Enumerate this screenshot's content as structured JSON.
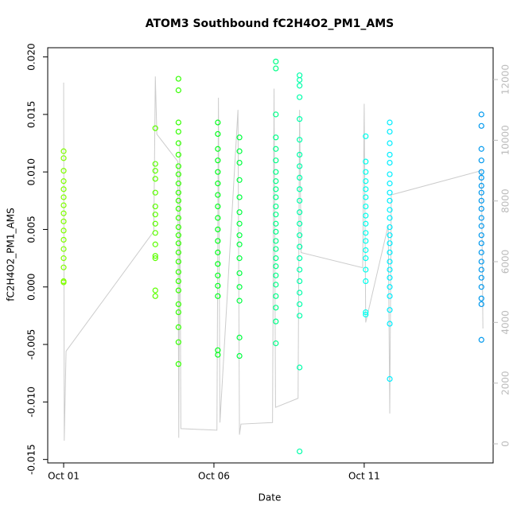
{
  "chart_data": {
    "type": "scatter",
    "title": "ATOM3 Southbound fC2H4O2_PM1_AMS",
    "x_label": "Date",
    "y_label": "fC2H4O2_PM1_AMS",
    "xlim": [
      0.47,
      15.29
    ],
    "xticks": [
      {
        "value": 1,
        "label": "Oct 01"
      },
      {
        "value": 6,
        "label": "Oct 06"
      },
      {
        "value": 11,
        "label": "Oct 11"
      }
    ],
    "ylim": [
      -0.0153,
      0.0208
    ],
    "yticks": [
      {
        "value": -0.015,
        "label": "-0.015"
      },
      {
        "value": -0.01,
        "label": "-0.010"
      },
      {
        "value": -0.005,
        "label": "-0.005"
      },
      {
        "value": 0,
        "label": "0.000"
      },
      {
        "value": 0.005,
        "label": "0.005"
      },
      {
        "value": 0.01,
        "label": "0.010"
      },
      {
        "value": 0.015,
        "label": "0.015"
      },
      {
        "value": 0.02,
        "label": "0.020"
      }
    ],
    "y2lim": [
      -629,
      13048
    ],
    "y2ticks": [
      0,
      2000,
      4000,
      6000,
      8000,
      10000,
      12000
    ],
    "y2_color": "#bbbbbb",
    "series": [
      {
        "color": "#80ff00",
        "x": 1.0,
        "values": [
          0.0118,
          0.0112,
          0.0101,
          0.0092,
          0.0085,
          0.0078,
          0.0071,
          0.0064,
          0.0057,
          0.0049,
          0.0041,
          0.0033,
          0.0025,
          0.0017,
          0.0005,
          0.0004
        ]
      },
      {
        "color": "#5cff00",
        "x": 4.05,
        "values": [
          0.0138,
          0.0107,
          0.0101,
          0.0094,
          0.0082,
          0.007,
          0.0063,
          0.0055,
          0.0047,
          0.0037,
          0.0027,
          0.0025,
          -0.0003,
          -0.0008
        ]
      },
      {
        "color": "#33ff00",
        "x": 4.82,
        "values": [
          0.0181,
          0.0171,
          0.0143,
          0.0135,
          0.0125,
          0.0115,
          0.0105,
          0.0098,
          0.009,
          0.0082,
          0.0075,
          0.0068,
          0.006,
          0.0052,
          0.0045,
          0.0038,
          0.003,
          0.0022,
          0.0013,
          0.0005,
          -0.0003,
          -0.0015,
          -0.0022,
          -0.0035,
          -0.0048,
          -0.0067
        ]
      },
      {
        "color": "#00ff1a",
        "x": 6.13,
        "values": [
          0.0143,
          0.0133,
          0.012,
          0.011,
          0.01,
          0.009,
          0.008,
          0.007,
          0.006,
          0.005,
          0.004,
          0.003,
          0.002,
          0.001,
          0.0001,
          -0.0008,
          -0.0055,
          -0.0059
        ]
      },
      {
        "color": "#00ff40",
        "x": 6.85,
        "values": [
          0.013,
          0.0118,
          0.0108,
          0.0093,
          0.0078,
          0.0065,
          0.0055,
          0.0045,
          0.0037,
          0.0025,
          0.0012,
          0.0,
          -0.0012,
          -0.0044,
          -0.006
        ]
      },
      {
        "color": "#00ff88",
        "x": 8.06,
        "values": [
          0.0196,
          0.019,
          0.015,
          0.013,
          0.012,
          0.011,
          0.01,
          0.0092,
          0.0085,
          0.0078,
          0.007,
          0.0063,
          0.0055,
          0.0048,
          0.004,
          0.0033,
          0.0025,
          0.0018,
          0.001,
          0.0002,
          -0.0008,
          -0.0018,
          -0.003,
          -0.0049
        ]
      },
      {
        "color": "#00ffaa",
        "x": 8.85,
        "values": [
          0.0184,
          0.018,
          0.0175,
          0.0165,
          0.0146,
          0.0128,
          0.0115,
          0.0105,
          0.0095,
          0.0085,
          0.0075,
          0.0065,
          0.0055,
          0.0045,
          0.0035,
          0.0025,
          0.0015,
          0.0005,
          -0.0005,
          -0.0015,
          -0.0025,
          -0.007,
          -0.0143
        ]
      },
      {
        "color": "#00ffee",
        "x": 11.05,
        "values": [
          0.0131,
          0.0109,
          0.01,
          0.0092,
          0.0085,
          0.0078,
          0.007,
          0.0062,
          0.0055,
          0.0047,
          0.004,
          0.0032,
          0.0025,
          0.0015,
          0.0005,
          -0.0022,
          -0.0024
        ]
      },
      {
        "color": "#00eeff",
        "x": 11.85,
        "values": [
          0.0143,
          0.0135,
          0.0125,
          0.0115,
          0.0108,
          0.0098,
          0.009,
          0.0082,
          0.0075,
          0.0067,
          0.006,
          0.0052,
          0.0045,
          0.0038,
          0.003,
          0.0022,
          0.0015,
          0.0008,
          0.0,
          -0.0008,
          -0.002,
          -0.0032,
          -0.008
        ]
      },
      {
        "color": "#0099ee",
        "x": 14.9,
        "values": [
          0.015,
          0.014,
          0.012,
          0.011,
          0.01,
          0.0095,
          0.0088,
          0.0082,
          0.0075,
          0.0068,
          0.006,
          0.0053,
          0.0045,
          0.0038,
          0.003,
          0.0022,
          0.0015,
          0.0008,
          0.0,
          -0.001,
          -0.0015,
          -0.0046
        ]
      },
      {
        "type": "line",
        "axis": "y2",
        "color": "#cccccc",
        "x": [
          1.0,
          1.02,
          1.08,
          4.0,
          4.05,
          4.1,
          4.8,
          4.83,
          4.86,
          4.9,
          6.1,
          6.15,
          6.2,
          6.8,
          6.85,
          6.9,
          7.95,
          8.0,
          8.05,
          8.8,
          8.85,
          8.9,
          10.95,
          11.0,
          11.05,
          11.8,
          11.85,
          11.9,
          14.9,
          14.95
        ],
        "values": [
          11900,
          100,
          3050,
          7000,
          12100,
          10200,
          9300,
          200,
          10000,
          500,
          450,
          11400,
          700,
          11000,
          300,
          650,
          700,
          11700,
          1200,
          1500,
          11000,
          6300,
          5800,
          11200,
          4000,
          7200,
          1000,
          8200,
          9000,
          3800
        ]
      }
    ]
  }
}
